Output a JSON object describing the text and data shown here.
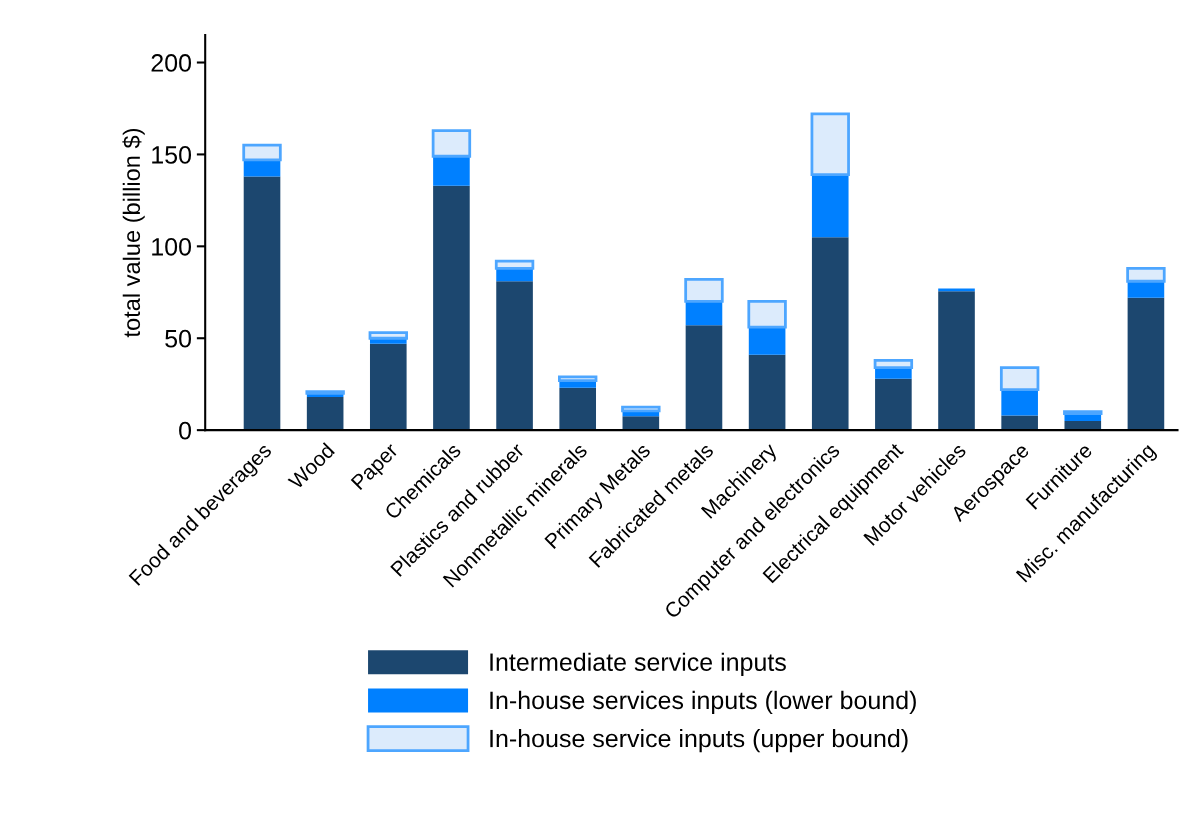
{
  "chart_data": {
    "type": "bar",
    "stacked": true,
    "ylabel": "total value (billion $)",
    "categories": [
      "Food and beverages",
      "Wood",
      "Paper",
      "Chemicals",
      "Plastics and rubber",
      "Nonmetallic minerals",
      "Primary Metals",
      "Fabricated metals",
      "Machinery",
      "Computer and electronics",
      "Electrical equipment",
      "Motor vehicles",
      "Aerospace",
      "Furniture",
      "Misc. manufacturing"
    ],
    "series": [
      {
        "name": "Intermediate service inputs",
        "color": "#1c476f",
        "values": [
          138,
          18,
          47,
          133,
          81,
          23,
          7.5,
          57,
          41,
          105,
          28,
          75.5,
          8,
          5,
          72
        ]
      },
      {
        "name": "In-house services inputs (lower bound)",
        "color": "#0080ff",
        "values": [
          9,
          2,
          3,
          16,
          7,
          4,
          3,
          13,
          15,
          34,
          6,
          1.5,
          14,
          4,
          9
        ]
      },
      {
        "name": "In-house service inputs (upper bound)",
        "color": "#dcebfc",
        "values": [
          8,
          1,
          3,
          14,
          4,
          2,
          2,
          12,
          14,
          33,
          4,
          null,
          12,
          1,
          7
        ]
      }
    ],
    "ylim": [
      0,
      215
    ],
    "yticks": [
      0,
      50,
      100,
      150,
      200
    ],
    "grid": false,
    "legend": "bottom"
  }
}
